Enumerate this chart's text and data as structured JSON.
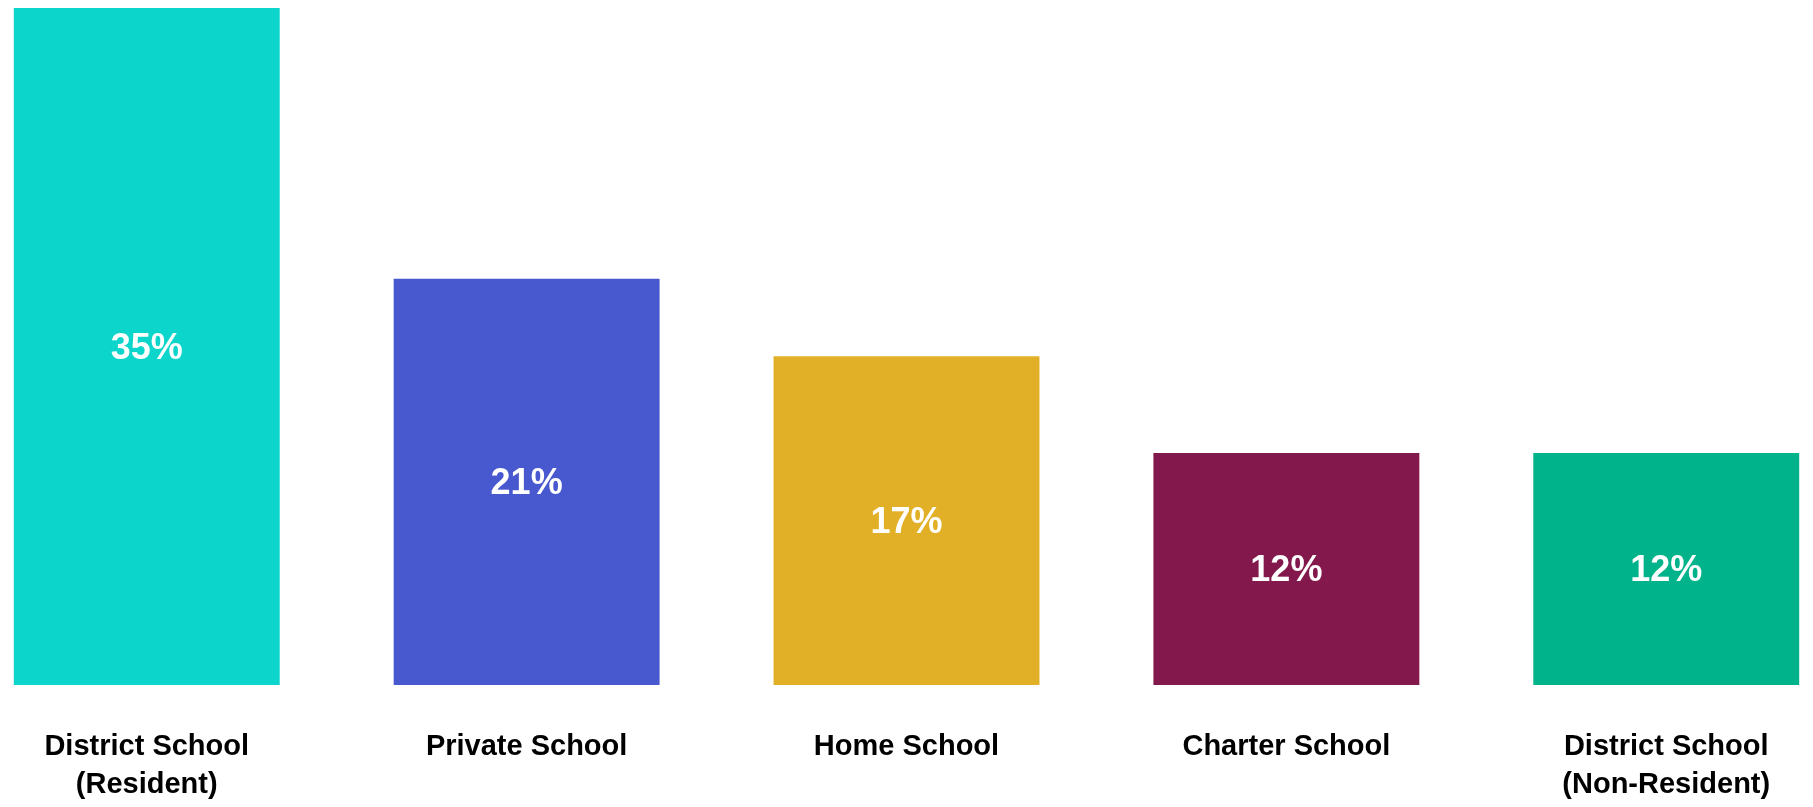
{
  "chart_data": {
    "type": "bar",
    "categories": [
      "District School\n(Resident)",
      "Private School",
      "Home School",
      "Charter School",
      "District School\n(Non-Resident)"
    ],
    "values": [
      35,
      21,
      17,
      12,
      12
    ],
    "value_labels": [
      "35%",
      "21%",
      "17%",
      "12%",
      "12%"
    ],
    "colors": [
      "#0cd6cc",
      "#4858cf",
      "#e1b026",
      "#83184d",
      "#00b38a"
    ],
    "ylim": [
      0,
      35
    ],
    "tick_labels": "x"
  }
}
